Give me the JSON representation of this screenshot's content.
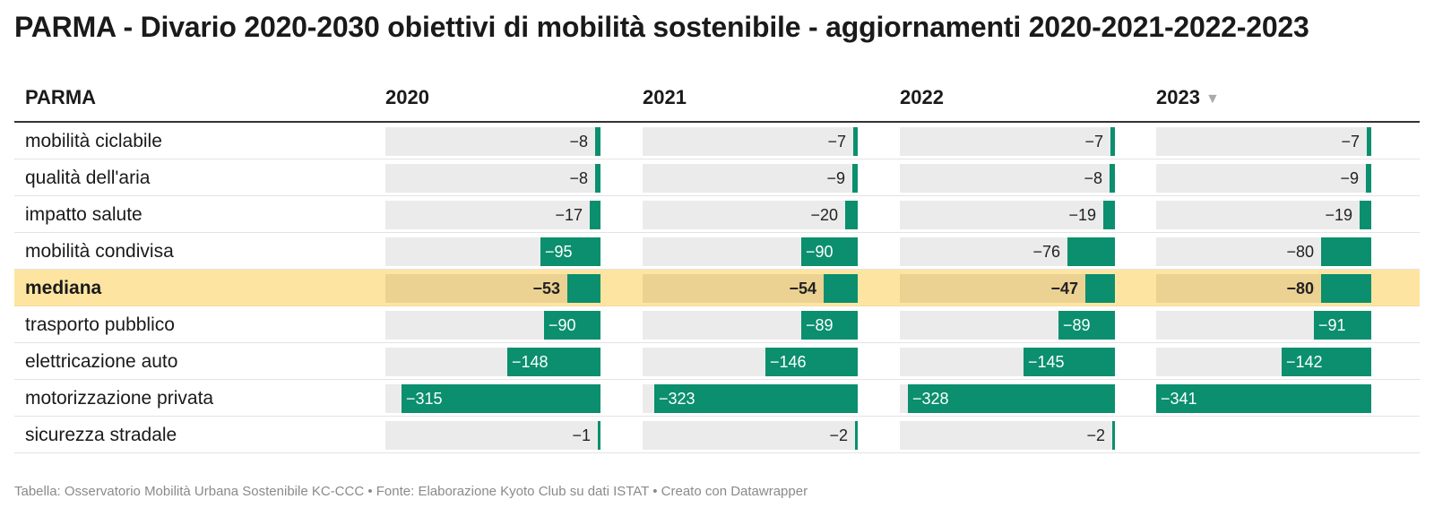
{
  "title": "PARMA - Divario 2020-2030 obiettivi di mobilità sostenibile - aggiornamenti 2020-2021-2022-2023",
  "footer": "Tabella: Osservatorio Mobilità Urbana Sostenibile KC-CCC • Fonte: Elaborazione Kyoto Club su dati ISTAT • Creato con Datawrapper",
  "colors": {
    "bar": "#0b8f6e",
    "highlight_row": "#fde5a1",
    "cell_bg": "#ebebeb"
  },
  "chart_data": {
    "type": "table",
    "row_header": "PARMA",
    "columns": [
      "2020",
      "2021",
      "2022",
      "2023"
    ],
    "sorted_column": "2023",
    "sort_icon": "sort-descending-icon",
    "highlight_row": "mediana",
    "value_range": [
      -341,
      0
    ],
    "rows": [
      {
        "label": "mobilità ciclabile",
        "values": [
          -8,
          -7,
          -7,
          -7
        ]
      },
      {
        "label": "qualità dell'aria",
        "values": [
          -8,
          -9,
          -8,
          -9
        ]
      },
      {
        "label": "impatto salute",
        "values": [
          -17,
          -20,
          -19,
          -19
        ]
      },
      {
        "label": "mobilità condivisa",
        "values": [
          -95,
          -90,
          -76,
          -80
        ]
      },
      {
        "label": "mediana",
        "values": [
          -53,
          -54,
          -47,
          -80
        ]
      },
      {
        "label": "trasporto pubblico",
        "values": [
          -90,
          -89,
          -89,
          -91
        ]
      },
      {
        "label": "elettricazione auto",
        "values": [
          -148,
          -146,
          -145,
          -142
        ]
      },
      {
        "label": "motorizzazione privata",
        "values": [
          -315,
          -323,
          -328,
          -341
        ]
      },
      {
        "label": "sicurezza stradale",
        "values": [
          -1,
          -2,
          -2,
          null
        ]
      }
    ]
  }
}
